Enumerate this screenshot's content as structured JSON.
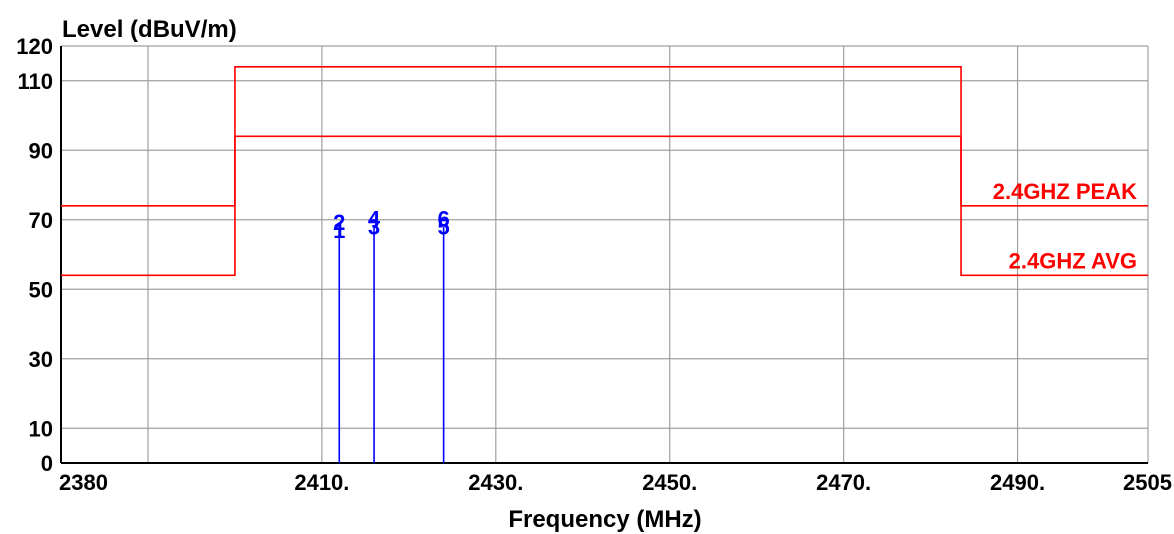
{
  "chart_data": {
    "type": "line",
    "ylabel": "Level (dBuV/m)",
    "xlabel": "Frequency (MHz)",
    "xlim": [
      2380,
      2505
    ],
    "ylim": [
      0,
      120
    ],
    "x_ticks": [
      {
        "value": 2380,
        "label": "2380"
      },
      {
        "value": 2410,
        "label": "2410."
      },
      {
        "value": 2430,
        "label": "2430."
      },
      {
        "value": 2450,
        "label": "2450."
      },
      {
        "value": 2470,
        "label": "2470."
      },
      {
        "value": 2490,
        "label": "2490."
      },
      {
        "value": 2505,
        "label": "2505"
      }
    ],
    "y_ticks": [
      {
        "value": 0,
        "label": "0"
      },
      {
        "value": 10,
        "label": "10"
      },
      {
        "value": 30,
        "label": "30"
      },
      {
        "value": 50,
        "label": "50"
      },
      {
        "value": 70,
        "label": "70"
      },
      {
        "value": 90,
        "label": "90"
      },
      {
        "value": 110,
        "label": "110"
      },
      {
        "value": 120,
        "label": "120"
      }
    ],
    "x_grid": [
      2380,
      2390,
      2410,
      2430,
      2450,
      2470,
      2490,
      2505
    ],
    "y_grid": [
      10,
      30,
      50,
      70,
      90,
      110,
      120
    ],
    "grid": true,
    "limit_lines": [
      {
        "label": "2.4GHZ PEAK",
        "color": "#ff0000",
        "points": [
          [
            2380,
            74
          ],
          [
            2400,
            74
          ],
          [
            2400,
            114
          ],
          [
            2483.5,
            114
          ],
          [
            2483.5,
            74
          ],
          [
            2505,
            74
          ]
        ]
      },
      {
        "label": "2.4GHZ  AVG",
        "color": "#ff0000",
        "points": [
          [
            2380,
            54
          ],
          [
            2400,
            54
          ],
          [
            2400,
            94
          ],
          [
            2483.5,
            94
          ],
          [
            2483.5,
            54
          ],
          [
            2505,
            54
          ]
        ]
      }
    ],
    "markers": [
      {
        "x": 2412,
        "y": 67,
        "labels": [
          "1",
          "2"
        ]
      },
      {
        "x": 2416,
        "y": 68,
        "labels": [
          "3",
          "4"
        ]
      },
      {
        "x": 2424,
        "y": 68,
        "labels": [
          "5",
          "6"
        ]
      }
    ],
    "marker_color": "#0000ff"
  }
}
